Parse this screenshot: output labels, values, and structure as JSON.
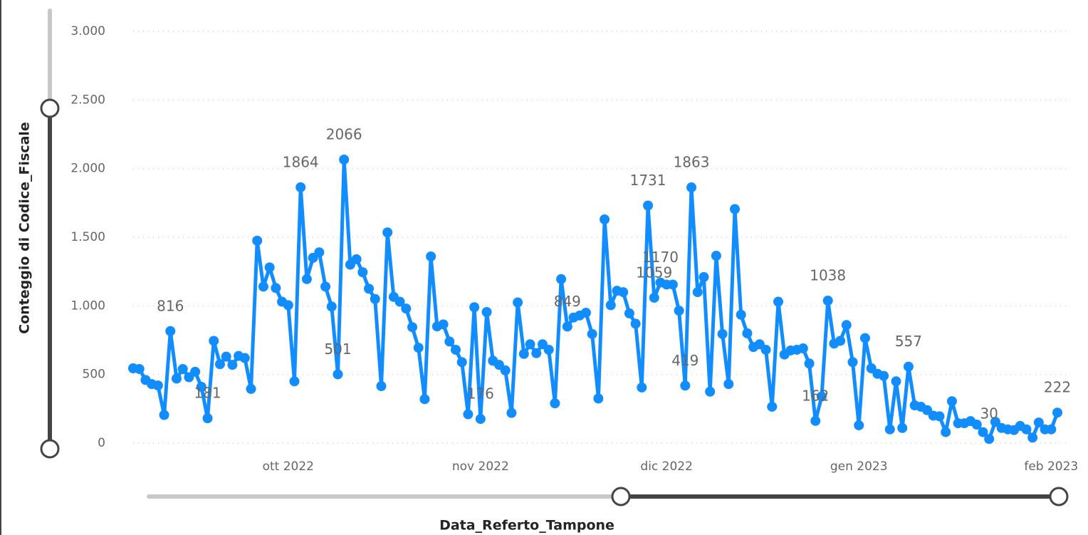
{
  "chart_data": {
    "type": "line",
    "y_title": "Conteggio di Codice_Fiscale",
    "x_title": "Data_Referto_Tampone",
    "categories": [
      null,
      null,
      null,
      null,
      null,
      null,
      null,
      null,
      null,
      null,
      null,
      null,
      null,
      null,
      null,
      null,
      null,
      null,
      null,
      null,
      null,
      null,
      null,
      null,
      null,
      "ott 2022",
      null,
      null,
      null,
      null,
      null,
      null,
      null,
      null,
      null,
      null,
      null,
      null,
      null,
      null,
      null,
      null,
      null,
      null,
      null,
      null,
      null,
      null,
      null,
      null,
      null,
      null,
      null,
      null,
      null,
      null,
      "nov 2022",
      null,
      null,
      null,
      null,
      null,
      null,
      null,
      null,
      null,
      null,
      null,
      null,
      null,
      null,
      null,
      null,
      null,
      null,
      null,
      null,
      null,
      null,
      null,
      null,
      null,
      null,
      null,
      null,
      null,
      "dic 2022",
      null,
      null,
      null,
      null,
      null,
      null,
      null,
      null,
      null,
      null,
      null,
      null,
      null,
      null,
      null,
      null,
      null,
      null,
      null,
      null,
      null,
      null,
      null,
      null,
      null,
      null,
      null,
      null,
      null,
      null,
      "gen 2023",
      null,
      null,
      null,
      null,
      null,
      null,
      null,
      null,
      null,
      null,
      null,
      null,
      null,
      null,
      null,
      null,
      null,
      null,
      null,
      null,
      null,
      null,
      null,
      null,
      null,
      null,
      null,
      null,
      null,
      null,
      "feb 2023",
      null
    ],
    "values": [
      545,
      540,
      460,
      430,
      420,
      205,
      816,
      470,
      540,
      480,
      520,
      410,
      181,
      745,
      575,
      630,
      570,
      635,
      620,
      395,
      1475,
      1140,
      1280,
      1130,
      1030,
      1005,
      450,
      1864,
      1195,
      1350,
      1390,
      1140,
      995,
      501,
      2066,
      1300,
      1340,
      1245,
      1125,
      1050,
      415,
      1535,
      1065,
      1030,
      980,
      845,
      695,
      320,
      1360,
      850,
      865,
      740,
      680,
      590,
      210,
      990,
      176,
      955,
      600,
      570,
      530,
      220,
      1025,
      650,
      720,
      655,
      720,
      680,
      290,
      1195,
      849,
      915,
      930,
      950,
      795,
      325,
      1630,
      1005,
      1110,
      1100,
      945,
      870,
      405,
      1731,
      1059,
      1170,
      1155,
      1155,
      965,
      419,
      1863,
      1100,
      1210,
      375,
      1365,
      795,
      430,
      1705,
      935,
      800,
      700,
      720,
      680,
      265,
      1030,
      645,
      675,
      680,
      690,
      580,
      162,
      340,
      1038,
      725,
      745,
      860,
      590,
      130,
      765,
      545,
      505,
      490,
      100,
      450,
      110,
      557,
      275,
      265,
      240,
      200,
      195,
      80,
      305,
      145,
      145,
      160,
      135,
      80,
      30,
      155,
      110,
      100,
      95,
      125,
      100,
      40,
      150,
      100,
      100,
      222
    ],
    "value_labels": [
      null,
      null,
      null,
      null,
      null,
      null,
      "816",
      null,
      null,
      null,
      null,
      null,
      "181",
      null,
      null,
      null,
      null,
      null,
      null,
      null,
      null,
      null,
      null,
      null,
      null,
      null,
      null,
      "1864",
      null,
      null,
      null,
      null,
      null,
      "501",
      "2066",
      null,
      null,
      null,
      null,
      null,
      null,
      null,
      null,
      null,
      null,
      null,
      null,
      null,
      null,
      null,
      null,
      null,
      null,
      null,
      null,
      null,
      "176",
      null,
      null,
      null,
      null,
      null,
      null,
      null,
      null,
      null,
      null,
      null,
      null,
      null,
      "849",
      null,
      null,
      null,
      null,
      null,
      null,
      null,
      null,
      null,
      null,
      null,
      null,
      "1731",
      "1059",
      "1170",
      null,
      null,
      null,
      "419",
      "1863",
      null,
      null,
      null,
      null,
      null,
      null,
      null,
      null,
      null,
      null,
      null,
      null,
      null,
      null,
      null,
      null,
      null,
      null,
      null,
      "162",
      null,
      "1038",
      null,
      null,
      null,
      null,
      null,
      null,
      null,
      null,
      null,
      null,
      null,
      null,
      "557",
      null,
      null,
      null,
      null,
      null,
      null,
      null,
      null,
      null,
      null,
      null,
      null,
      "30",
      null,
      null,
      null,
      null,
      null,
      null,
      null,
      null,
      null,
      null,
      "222"
    ],
    "color": "#118DFF",
    "ylim": [
      0,
      3000
    ],
    "yticks": [
      0,
      500,
      {
        "value": 1000,
        "label": "1.000"
      },
      {
        "value": 1500,
        "label": "1.500"
      },
      {
        "value": 2000,
        "label": "2.000"
      },
      {
        "value": 2500,
        "label": "2.500"
      },
      {
        "value": 3000,
        "label": "3.000"
      }
    ],
    "grid": true
  }
}
